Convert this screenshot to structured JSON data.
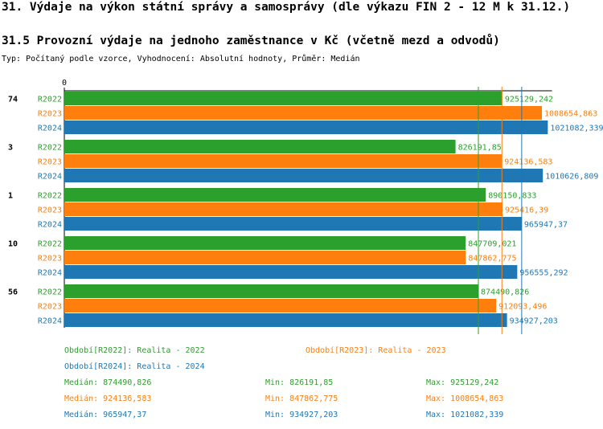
{
  "chart_data": {
    "type": "grouped-hbar",
    "title": "31. Výdaje na výkon státní správy a samosprávy (dle výkazu FIN 2 - 12 M k 31.12.)",
    "subtitle": "31.5 Provozní výdaje na jednoho zaměstnance v Kč (včetně mezd a odvodů)",
    "description": "Typ: Počítaný podle vzorce, Vyhodnocení: Absolutní hodnoty, Průměr: Medián",
    "categories": [
      "74",
      "3",
      "1",
      "10",
      "56"
    ],
    "xlim": [
      0,
      1030000
    ],
    "xticks": [
      0
    ],
    "stat_labels": {
      "median": "Medián:",
      "min": "Min:",
      "max": "Max:"
    },
    "series": [
      {
        "name": "R2022",
        "legend_label": "Období[R2022]: Realita - 2022",
        "color": "#2ca02c",
        "values": [
          925129.242,
          826191.85,
          890150.833,
          847709.021,
          874490.826
        ],
        "value_labels": [
          "925129,242",
          "826191,85",
          "890150,833",
          "847709,021",
          "874490,826"
        ],
        "median": 874490.826,
        "median_label": "874490,826",
        "min": 826191.85,
        "min_label": "826191,85",
        "max": 925129.242,
        "max_label": "925129,242"
      },
      {
        "name": "R2023",
        "legend_label": "Období[R2023]: Realita - 2023",
        "color": "#ff7f0e",
        "values": [
          1008654.863,
          924136.583,
          925416.39,
          847862.775,
          912093.496
        ],
        "value_labels": [
          "1008654,863",
          "924136,583",
          "925416,39",
          "847862,775",
          "912093,496"
        ],
        "median": 924136.583,
        "median_label": "924136,583",
        "min": 847862.775,
        "min_label": "847862,775",
        "max": 1008654.863,
        "max_label": "1008654,863"
      },
      {
        "name": "R2024",
        "legend_label": "Období[R2024]: Realita - 2024",
        "color": "#1f77b4",
        "values": [
          1021082.339,
          1010626.809,
          965947.37,
          956555.292,
          934927.203
        ],
        "value_labels": [
          "1021082,339",
          "1010626,809",
          "965947,37",
          "956555,292",
          "934927,203"
        ],
        "median": 965947.37,
        "median_label": "965947,37",
        "min": 934927.203,
        "min_label": "934927,203",
        "max": 1021082.339,
        "max_label": "1021082,339"
      }
    ]
  }
}
